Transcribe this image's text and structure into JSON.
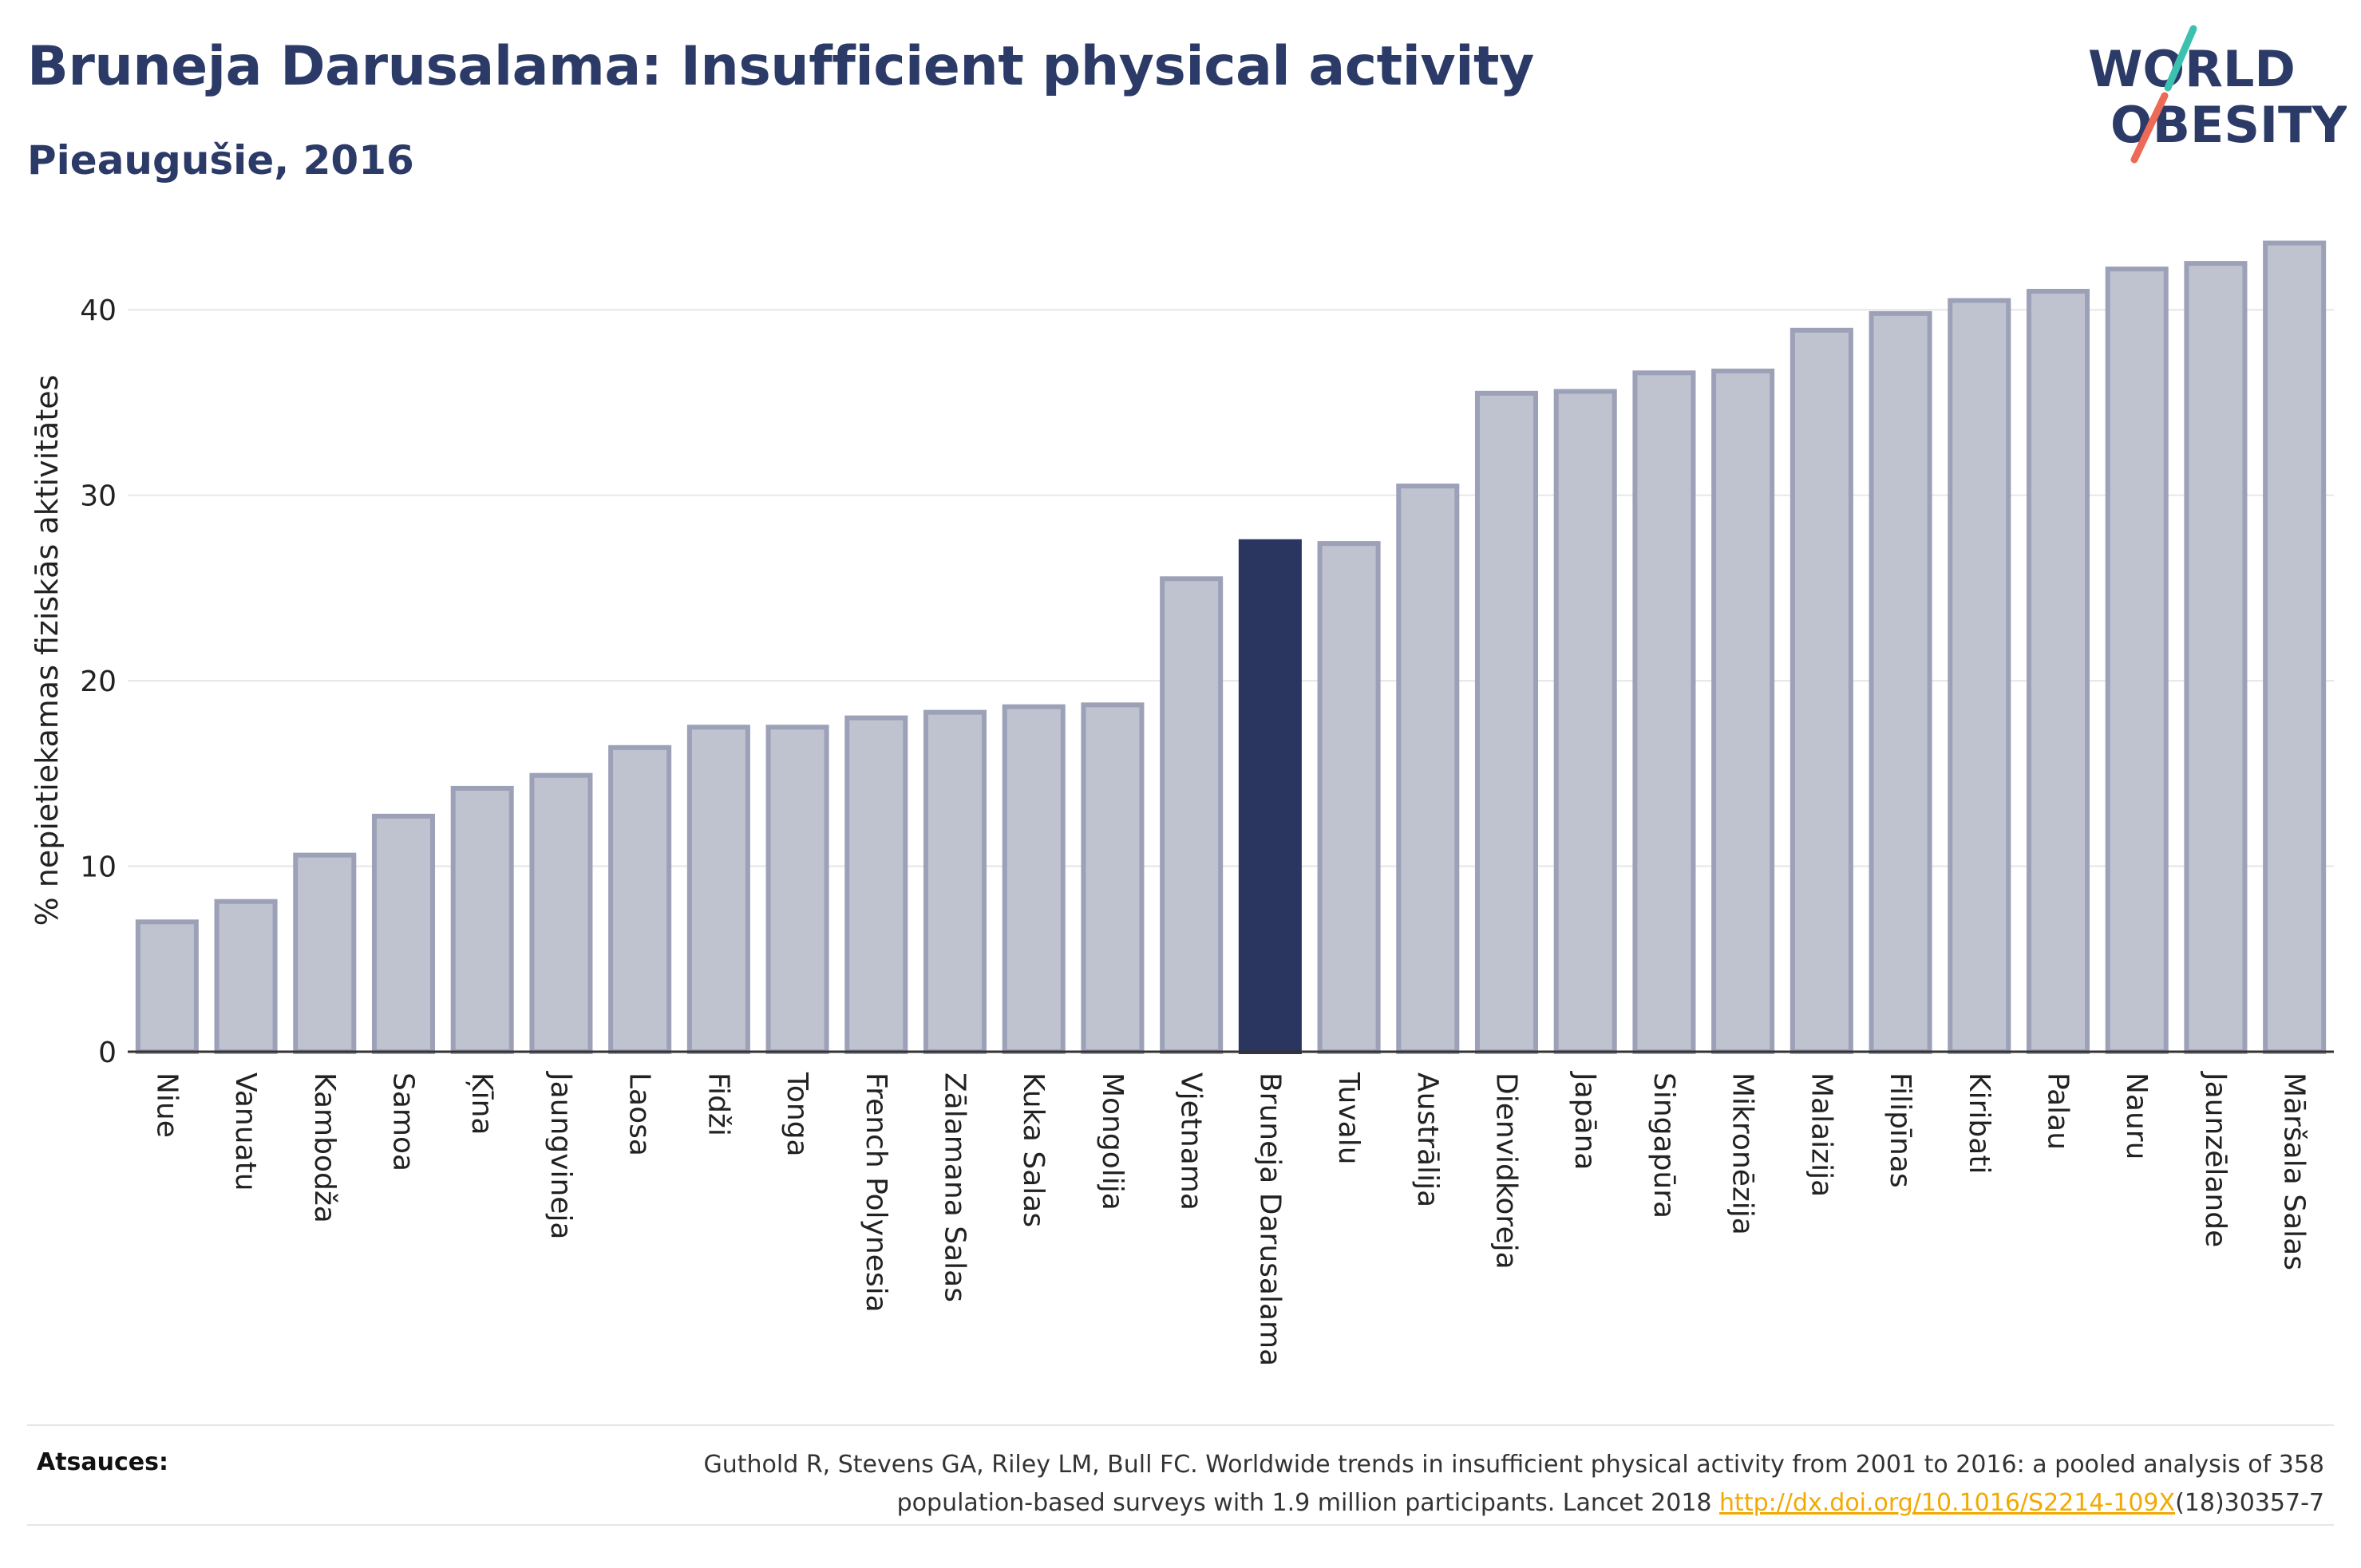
{
  "header": {
    "title": "Bruneja Darusalama: Insufficient physical activity",
    "subtitle": "Pieaugušie, 2016"
  },
  "logo": {
    "line1": "WORLD",
    "line2": "OBESITY"
  },
  "colors": {
    "title": "#2b3a67",
    "bar": "#bfc2cf",
    "bar_border": "#9ca1b8",
    "highlight": "#2a3560",
    "logo_teal": "#3cc0b0",
    "logo_coral": "#ec6a56",
    "link": "#f2a900"
  },
  "chart_data": {
    "type": "bar",
    "ylabel": "% nepietiekamas fiziskās aktivitātes",
    "ylim": [
      0,
      45
    ],
    "yticks": [
      0,
      10,
      20,
      30,
      40
    ],
    "grid": true,
    "highlight": "Bruneja Darusalama",
    "categories": [
      "Niue",
      "Vanuatu",
      "Kambodža",
      "Samoa",
      "Ķīna",
      "Jaungvineja",
      "Laosa",
      "Fidži",
      "Tonga",
      "French Polynesia",
      "Zālamana Salas",
      "Kuka Salas",
      "Mongolija",
      "Vjetnama",
      "Bruneja Darusalama",
      "Tuvalu",
      "Austrālija",
      "Dienvidkoreja",
      "Japāna",
      "Singapūra",
      "Mikronēzija",
      "Malaizija",
      "Filipīnas",
      "Kiribati",
      "Palau",
      "Nauru",
      "Jaunzēlande",
      "Māršala Salas"
    ],
    "values": [
      7.0,
      8.1,
      10.6,
      12.7,
      14.2,
      14.9,
      16.4,
      17.5,
      17.5,
      18.0,
      18.3,
      18.6,
      18.7,
      25.5,
      27.5,
      27.4,
      30.5,
      35.5,
      35.6,
      36.6,
      36.7,
      38.9,
      39.8,
      40.5,
      41.0,
      42.2,
      42.5,
      43.6
    ]
  },
  "footer": {
    "label": "Atsauces:",
    "text_line1": "Guthold R, Stevens GA, Riley LM, Bull FC. Worldwide trends in insufficient physical activity from 2001 to 2016: a pooled analysis of 358",
    "text_line2_prefix": "population-based surveys with 1.9 million participants. Lancet 2018 ",
    "link": "http://dx.doi.org/10.1016/S2214-109X",
    "text_line2_suffix": "(18)30357-7"
  }
}
